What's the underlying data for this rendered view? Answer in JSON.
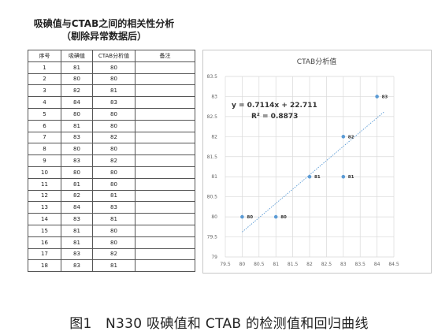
{
  "sheet_title": {
    "line1": "吸碘值与CTAB之间的相关性分析",
    "line2": "（剔除异常数据后）"
  },
  "table": {
    "headers": [
      "序号",
      "吸碘值",
      "CTAB分析值",
      "备注"
    ],
    "rows": [
      [
        "1",
        "81",
        "80",
        ""
      ],
      [
        "2",
        "80",
        "80",
        ""
      ],
      [
        "3",
        "82",
        "81",
        ""
      ],
      [
        "4",
        "84",
        "83",
        ""
      ],
      [
        "5",
        "80",
        "80",
        ""
      ],
      [
        "6",
        "81",
        "80",
        ""
      ],
      [
        "7",
        "83",
        "82",
        ""
      ],
      [
        "8",
        "80",
        "80",
        ""
      ],
      [
        "9",
        "83",
        "82",
        ""
      ],
      [
        "10",
        "80",
        "80",
        ""
      ],
      [
        "11",
        "81",
        "80",
        ""
      ],
      [
        "12",
        "82",
        "81",
        ""
      ],
      [
        "13",
        "84",
        "83",
        ""
      ],
      [
        "14",
        "83",
        "81",
        ""
      ],
      [
        "15",
        "81",
        "80",
        ""
      ],
      [
        "16",
        "81",
        "80",
        ""
      ],
      [
        "17",
        "83",
        "82",
        ""
      ],
      [
        "18",
        "83",
        "81",
        ""
      ]
    ]
  },
  "chart_data": {
    "type": "scatter",
    "title": "CTAB分析值",
    "xlim": [
      79.5,
      84.5
    ],
    "ylim": [
      79,
      83.5
    ],
    "x_ticks": [
      "79.5",
      "80",
      "80.5",
      "81",
      "81.5",
      "82",
      "82.5",
      "83",
      "83.5",
      "84",
      "84.5"
    ],
    "y_ticks": [
      "79",
      "79.5",
      "80",
      "80.5",
      "81",
      "81.5",
      "82",
      "82.5",
      "83",
      "83.5"
    ],
    "grid": true,
    "points": [
      {
        "x": 80,
        "y": 80,
        "label": "80"
      },
      {
        "x": 81,
        "y": 80,
        "label": "80"
      },
      {
        "x": 82,
        "y": 81,
        "label": "81"
      },
      {
        "x": 83,
        "y": 81,
        "label": "81"
      },
      {
        "x": 83,
        "y": 82,
        "label": "82"
      },
      {
        "x": 84,
        "y": 83,
        "label": "83"
      }
    ],
    "trendline": {
      "slope": 0.7114,
      "intercept": 22.711,
      "x_range": [
        80,
        84.5
      ]
    },
    "equation": "y = 0.7114x + 22.711",
    "r_squared": "R² = 0.8873",
    "colors": {
      "marker": "#5b9bd5",
      "trendline": "#5b9bd5",
      "grid": "#d9d9d9"
    }
  },
  "caption": "图1　N330 吸碘值和 CTAB 的检测值和回归曲线"
}
